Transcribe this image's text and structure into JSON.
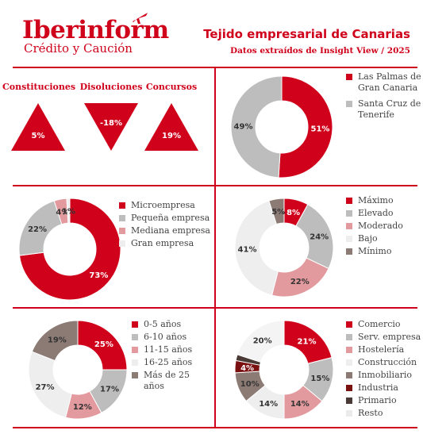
{
  "header": {
    "brand": "Iberinform",
    "brand_sub": "Crédito y Caución",
    "title": "Tejido empresarial de Canarias",
    "subtitle": "Datos extraídos de Insight View / 2025"
  },
  "indicators": [
    {
      "label": "Constituciones",
      "value": "5%",
      "direction": "up"
    },
    {
      "label": "Disoluciones",
      "value": "-18%",
      "direction": "down"
    },
    {
      "label": "Concursos",
      "value": "19%",
      "direction": "up"
    }
  ],
  "colors": {
    "red": "#d0021b",
    "grey": "#bdbdbd",
    "pink": "#e29a9e",
    "light": "#eeeeee",
    "brown": "#8c7b75",
    "darkgrey": "#6e6e6e",
    "darkbrown": "#4a3a36",
    "darkred": "#7a1010"
  },
  "chart_data": [
    {
      "type": "pie",
      "categories": [
        "Las Palmas de Gran Canaria",
        "Santa Cruz de Tenerife"
      ],
      "values": [
        51,
        49
      ],
      "labels": [
        "51%",
        "49%"
      ],
      "colors": [
        "#d0021b",
        "#bdbdbd"
      ],
      "legend_lines": [
        [
          "Las Palmas de",
          "Gran Canaria"
        ],
        [
          "Santa Cruz de",
          "Tenerife"
        ]
      ]
    },
    {
      "type": "pie",
      "categories": [
        "Microempresa",
        "Pequeña empresa",
        "Mediana empresa",
        "Gran empresa"
      ],
      "values": [
        73,
        22,
        4,
        1
      ],
      "labels": [
        "73%",
        "22%",
        "4%",
        "1%"
      ],
      "colors": [
        "#d0021b",
        "#bdbdbd",
        "#e29a9e",
        "#eeeeee"
      ]
    },
    {
      "type": "pie",
      "categories": [
        "Máximo",
        "Elevado",
        "Moderado",
        "Bajo",
        "Mínimo"
      ],
      "values": [
        8,
        24,
        22,
        41,
        5
      ],
      "labels": [
        "8%",
        "24%",
        "22%",
        "41%",
        "5%"
      ],
      "colors": [
        "#d0021b",
        "#bdbdbd",
        "#e29a9e",
        "#eeeeee",
        "#8c7b75"
      ]
    },
    {
      "type": "pie",
      "categories": [
        "0-5 años",
        "6-10 años",
        "11-15 años",
        "16-25 años",
        "Más de 25 años"
      ],
      "values": [
        25,
        17,
        12,
        27,
        19
      ],
      "labels": [
        "25%",
        "17%",
        "12%",
        "27%",
        "19%"
      ],
      "colors": [
        "#d0021b",
        "#bdbdbd",
        "#e29a9e",
        "#eeeeee",
        "#8c7b75"
      ]
    },
    {
      "type": "pie",
      "categories": [
        "Comercio",
        "Serv. empresa",
        "Hostelería",
        "Construcción",
        "Inmobiliario",
        "Industria",
        "Primario",
        "Resto"
      ],
      "values": [
        21,
        15,
        14,
        14,
        10,
        4,
        2,
        20
      ],
      "labels": [
        "21%",
        "15%",
        "14%",
        "14%",
        "10%",
        "4%",
        "",
        "20%"
      ],
      "colors": [
        "#d0021b",
        "#bdbdbd",
        "#e29a9e",
        "#eeeeee",
        "#8c7b75",
        "#7a1010",
        "#4a3a36",
        "#f4f4f4"
      ]
    }
  ]
}
